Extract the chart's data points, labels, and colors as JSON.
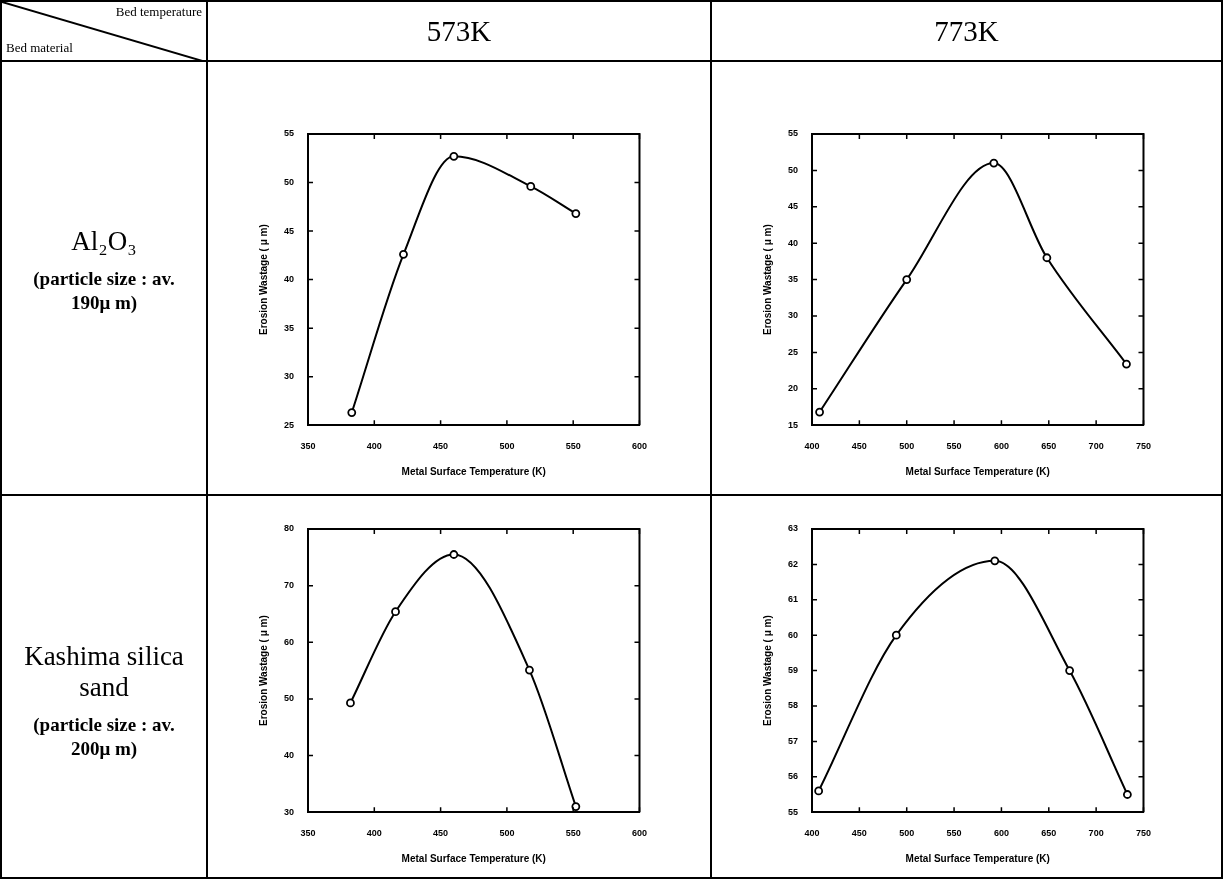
{
  "chart_data": [
    {
      "type": "other",
      "annotations": [
        "Bed temperature",
        "Bed material",
        "573K",
        "773K",
        "Al₂O₃",
        "(particle size : av. 190μ m)",
        "Kashima silica sand",
        "(particle size : av. 200μ m)"
      ]
    },
    {
      "type": "line",
      "xlabel": "Metal Surface Temperature (K)",
      "ylabel": "Erosion Wastage ( μ m)",
      "x": [
        383,
        422,
        460,
        518,
        552
      ],
      "values": [
        26.3,
        42.6,
        52.7,
        49.6,
        46.8
      ],
      "color": "#000000",
      "marker": "circle",
      "xlim": [
        350,
        600
      ],
      "xticks": [
        350,
        400,
        450,
        500,
        550,
        600
      ],
      "ylim": [
        25,
        55
      ],
      "yticks": [
        25,
        30,
        35,
        40,
        45,
        50,
        55
      ]
    },
    {
      "type": "line",
      "xlabel": "Metal Surface Temperature (K)",
      "ylabel": "Erosion Wastage ( μ m)",
      "x": [
        408,
        500,
        592,
        648,
        732
      ],
      "values": [
        16.8,
        35,
        51,
        38,
        23.4
      ],
      "color": "#000000",
      "marker": "circle",
      "xlim": [
        400,
        750
      ],
      "xticks": [
        400,
        450,
        500,
        550,
        600,
        650,
        700,
        750
      ],
      "ylim": [
        15,
        55
      ],
      "yticks": [
        15,
        20,
        25,
        30,
        35,
        40,
        45,
        50,
        55
      ]
    },
    {
      "type": "line",
      "xlabel": "Metal Surface Temperature (K)",
      "ylabel": "Erosion Wastage ( μ m)",
      "x": [
        382,
        416,
        460,
        517,
        552
      ],
      "values": [
        49.3,
        65.4,
        75.5,
        55.1,
        31
      ],
      "color": "#000000",
      "marker": "circle",
      "xlim": [
        350,
        600
      ],
      "xticks": [
        350,
        400,
        450,
        500,
        550,
        600
      ],
      "ylim": [
        30,
        80
      ],
      "yticks": [
        30,
        40,
        50,
        60,
        70,
        80
      ]
    },
    {
      "type": "line",
      "xlabel": "Metal Surface Temperature (K)",
      "ylabel": "Erosion Wastage ( μ m)",
      "x": [
        407,
        489,
        593,
        672,
        733
      ],
      "values": [
        55.6,
        60,
        62.1,
        59,
        55.5
      ],
      "color": "#000000",
      "marker": "circle",
      "xlim": [
        400,
        750
      ],
      "xticks": [
        400,
        450,
        500,
        550,
        600,
        650,
        700,
        750
      ],
      "ylim": [
        55,
        63
      ],
      "yticks": [
        55,
        56,
        57,
        58,
        59,
        60,
        61,
        62,
        63
      ]
    }
  ]
}
